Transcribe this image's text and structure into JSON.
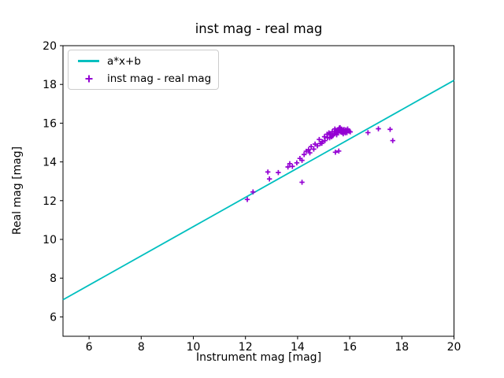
{
  "chart_data": {
    "type": "scatter",
    "title": "inst mag - real mag",
    "xlabel": "Instrument mag [mag]",
    "ylabel": "Real mag [mag]",
    "xlim": [
      5,
      20
    ],
    "ylim": [
      5,
      20
    ],
    "xticks": [
      6,
      8,
      10,
      12,
      14,
      16,
      18,
      20
    ],
    "yticks": [
      6,
      8,
      10,
      12,
      14,
      16,
      18,
      20
    ],
    "grid": false,
    "legend_position": "upper left",
    "series": [
      {
        "name": "a*x+b",
        "type": "line",
        "color": "#00bfbf",
        "a": 0.755,
        "b": 3.11,
        "x_start": 5,
        "x_end": 20
      },
      {
        "name": "inst mag - real mag",
        "type": "scatter",
        "color": "#9400d3",
        "marker": "plus",
        "points": [
          [
            12.07,
            12.06
          ],
          [
            12.29,
            12.45
          ],
          [
            12.86,
            13.48
          ],
          [
            12.92,
            13.12
          ],
          [
            13.26,
            13.45
          ],
          [
            13.63,
            13.74
          ],
          [
            13.7,
            13.91
          ],
          [
            13.8,
            13.77
          ],
          [
            13.97,
            13.95
          ],
          [
            14.09,
            14.18
          ],
          [
            14.17,
            14.08
          ],
          [
            14.17,
            12.95
          ],
          [
            14.25,
            14.38
          ],
          [
            14.33,
            14.55
          ],
          [
            14.42,
            14.63
          ],
          [
            14.47,
            14.47
          ],
          [
            14.52,
            14.79
          ],
          [
            14.62,
            14.66
          ],
          [
            14.67,
            14.92
          ],
          [
            14.76,
            14.83
          ],
          [
            14.83,
            15.16
          ],
          [
            14.87,
            14.95
          ],
          [
            14.93,
            14.96
          ],
          [
            14.95,
            15.05
          ],
          [
            15.03,
            15.3
          ],
          [
            15.05,
            15.1
          ],
          [
            15.13,
            15.43
          ],
          [
            15.15,
            15.25
          ],
          [
            15.2,
            15.5
          ],
          [
            15.23,
            15.24
          ],
          [
            15.25,
            15.45
          ],
          [
            15.3,
            15.3
          ],
          [
            15.33,
            15.56
          ],
          [
            15.35,
            15.35
          ],
          [
            15.4,
            15.45
          ],
          [
            15.43,
            15.7
          ],
          [
            15.45,
            15.55
          ],
          [
            15.45,
            14.5
          ],
          [
            15.48,
            15.62
          ],
          [
            15.5,
            15.4
          ],
          [
            15.53,
            15.5
          ],
          [
            15.55,
            15.65
          ],
          [
            15.57,
            15.58
          ],
          [
            15.58,
            14.56
          ],
          [
            15.6,
            15.75
          ],
          [
            15.62,
            15.62
          ],
          [
            15.63,
            15.77
          ],
          [
            15.65,
            15.55
          ],
          [
            15.68,
            15.7
          ],
          [
            15.7,
            15.52
          ],
          [
            15.73,
            15.63
          ],
          [
            15.75,
            15.45
          ],
          [
            15.78,
            15.68
          ],
          [
            15.79,
            15.56
          ],
          [
            15.83,
            15.5
          ],
          [
            15.85,
            15.65
          ],
          [
            15.88,
            15.58
          ],
          [
            15.89,
            15.51
          ],
          [
            15.92,
            15.7
          ],
          [
            15.97,
            15.59
          ],
          [
            16.02,
            15.55
          ],
          [
            16.7,
            15.51
          ],
          [
            17.1,
            15.71
          ],
          [
            17.55,
            15.68
          ],
          [
            17.65,
            15.1
          ]
        ]
      }
    ]
  }
}
